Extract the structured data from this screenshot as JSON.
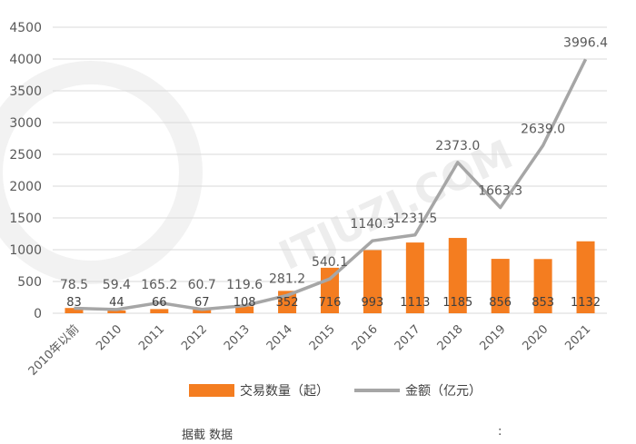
{
  "chart_data": {
    "type": "bar",
    "categories": [
      "2010年以前",
      "2010",
      "2011",
      "2012",
      "2013",
      "2014",
      "2015",
      "2016",
      "2017",
      "2018",
      "2019",
      "2020",
      "2021"
    ],
    "ylim": [
      0,
      4500
    ],
    "yticks": [
      0,
      500,
      1000,
      1500,
      2000,
      2500,
      3000,
      3500,
      4000,
      4500
    ],
    "grid": true,
    "legend_position": "bottom",
    "colors": {
      "bar": "#f47d20",
      "line": "#a6a6a6"
    },
    "series": [
      {
        "name": "交易数量（起）",
        "type": "bar",
        "values": [
          83,
          44,
          66,
          67,
          108,
          352,
          716,
          993,
          1113,
          1185,
          856,
          853,
          1132
        ]
      },
      {
        "name": "金额（亿元）",
        "type": "line",
        "values": [
          78.5,
          59.4,
          165.2,
          60.7,
          119.6,
          281.2,
          540.1,
          1140.3,
          1231.5,
          2373.0,
          1663.3,
          2639.0,
          3996.4
        ]
      }
    ],
    "bar_labels": [
      "83",
      "44",
      "66",
      "67",
      "108",
      "352",
      "716",
      "993",
      "1113",
      "1185",
      "856",
      "853",
      "1132"
    ],
    "line_labels": [
      "78.5",
      "59.4",
      "165.2",
      "60.7",
      "119.6",
      "281.2",
      "540.1",
      "1140.3",
      "1231.5",
      "2373.0",
      "1663.3",
      "2639.0",
      "3996.4"
    ]
  },
  "watermark": "ITJUZI.COM",
  "footer": {
    "source": "据截 数据",
    "colon": ":"
  }
}
